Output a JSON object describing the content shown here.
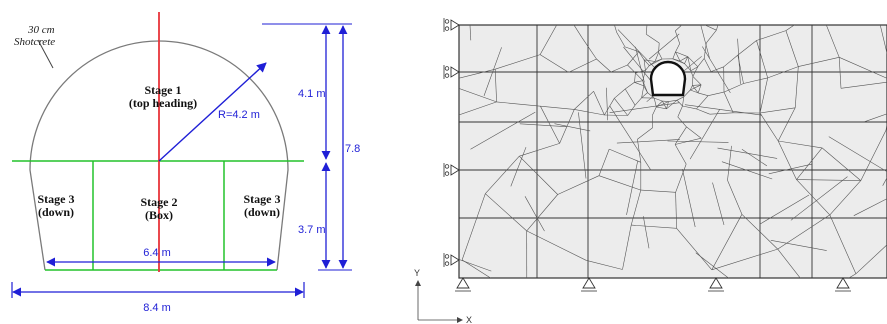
{
  "left_diagram": {
    "shotcrete_label_line1": "30 cm",
    "shotcrete_label_line2": "Shotcrete",
    "stage1_line1": "Stage 1",
    "stage1_line2": "(top heading)",
    "stage2_line1": "Stage 2",
    "stage2_line2": "(Box)",
    "stage3_left_line1": "Stage 3",
    "stage3_left_line2": "(down)",
    "stage3_right_line1": "Stage 3",
    "stage3_right_line2": "(down)",
    "radius_label": "R=4.2 m",
    "dim_upper_height": "4.1 m",
    "dim_total_height": "7.8",
    "dim_lower_height": "3.7 m",
    "dim_inner_width": "6.4 m",
    "dim_total_width": "8.4 m",
    "colors": {
      "centerline": "#e8343a",
      "stage_lines": "#22c22a",
      "dimension": "#1f1fd6",
      "outline": "#7a7a7a"
    }
  },
  "right_diagram": {
    "axis_y_label": "Y",
    "axis_x_label": "X",
    "colors": {
      "mesh_fill": "#ececec",
      "mesh_lines": "#444444"
    }
  }
}
